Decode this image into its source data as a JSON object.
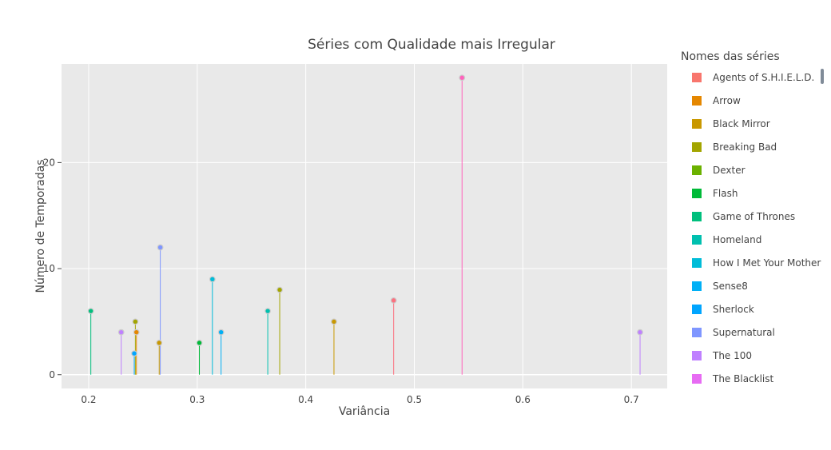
{
  "chart_data": {
    "type": "scatter",
    "title": "Séries com Qualidade mais Irregular",
    "xlabel": "Variância",
    "ylabel": "Número de Temporadas",
    "xlim": [
      0.175,
      0.733
    ],
    "ylim": [
      -1.3,
      29.3
    ],
    "xticks": [
      0.2,
      0.3,
      0.4,
      0.5,
      0.6,
      0.7
    ],
    "xtick_labels": [
      "0.2",
      "0.3",
      "0.4",
      "0.5",
      "0.6",
      "0.7"
    ],
    "yticks": [
      0,
      10,
      20
    ],
    "ytick_labels": [
      "0",
      "10",
      "20"
    ],
    "grid": true,
    "legend_title": "Nomes das séries",
    "legend_position": "right",
    "series": [
      {
        "name": "Agents of S.H.I.E.L.D.",
        "color": "#F8766D",
        "points": []
      },
      {
        "name": "Arrow",
        "color": "#E58700",
        "points": [
          [
            0.244,
            4
          ]
        ]
      },
      {
        "name": "Black Mirror",
        "color": "#C99800",
        "points": [
          [
            0.265,
            3
          ],
          [
            0.426,
            5
          ]
        ]
      },
      {
        "name": "Breaking Bad",
        "color": "#A3A500",
        "points": [
          [
            0.243,
            5
          ],
          [
            0.376,
            8
          ]
        ]
      },
      {
        "name": "Dexter",
        "color": "#6BB100",
        "points": []
      },
      {
        "name": "Flash",
        "color": "#00BA38",
        "points": [
          [
            0.302,
            3
          ]
        ]
      },
      {
        "name": "Game of Thrones",
        "color": "#00BF7D",
        "points": [
          [
            0.202,
            6
          ]
        ]
      },
      {
        "name": "Homeland",
        "color": "#00C0AF",
        "points": [
          [
            0.365,
            6
          ]
        ]
      },
      {
        "name": "How I Met Your Mother",
        "color": "#00BCD8",
        "points": [
          [
            0.314,
            9
          ]
        ]
      },
      {
        "name": "Sense8",
        "color": "#00B0F6",
        "points": [
          [
            0.322,
            4
          ]
        ]
      },
      {
        "name": "Sherlock",
        "color": "#00A5FF",
        "points": [
          [
            0.242,
            2
          ]
        ]
      },
      {
        "name": "Supernatural",
        "color": "#7F96FF",
        "points": [
          [
            0.266,
            12
          ]
        ]
      },
      {
        "name": "The 100",
        "color": "#BF80FF",
        "points": [
          [
            0.23,
            4
          ],
          [
            0.708,
            4
          ]
        ]
      },
      {
        "name": "The Blacklist",
        "color": "#E76BF3",
        "points": []
      },
      {
        "name": "",
        "color": "#FF62BC",
        "points": [
          [
            0.544,
            28
          ]
        ]
      },
      {
        "name": "",
        "color": "#FC717F",
        "points": [
          [
            0.481,
            7
          ]
        ]
      }
    ]
  }
}
